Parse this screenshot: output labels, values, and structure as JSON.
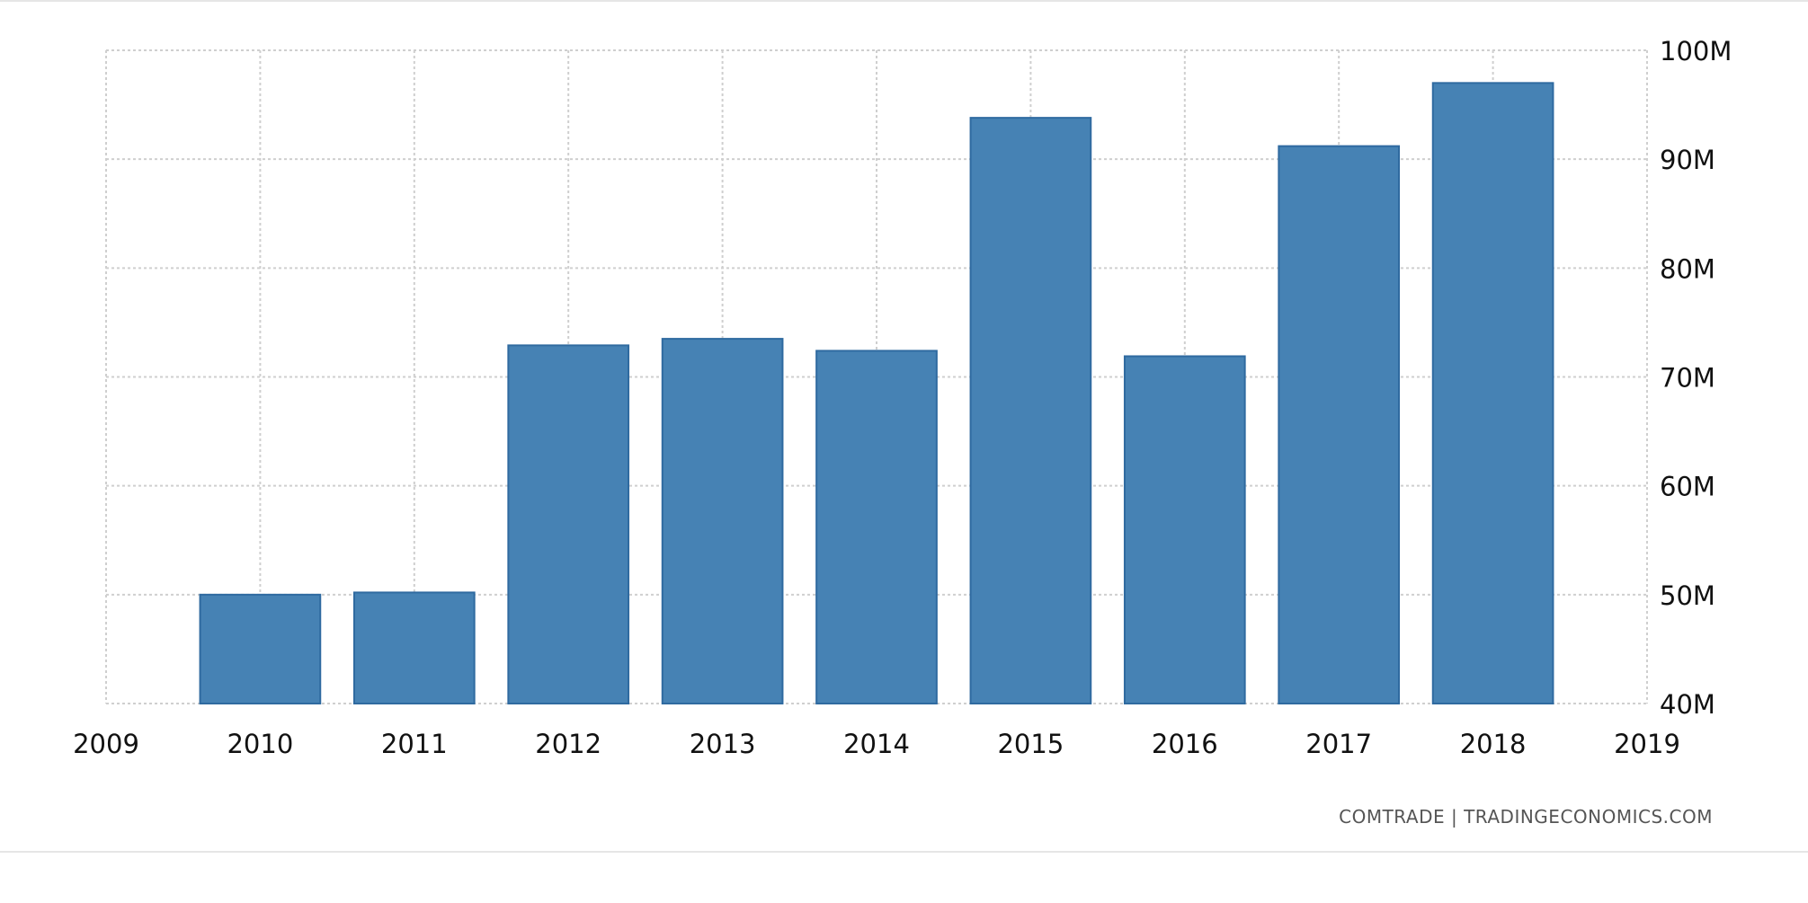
{
  "chart_data": {
    "type": "bar",
    "categories": [
      "2010",
      "2011",
      "2012",
      "2013",
      "2014",
      "2015",
      "2016",
      "2017",
      "2018"
    ],
    "values": [
      50,
      50.2,
      72.9,
      73.5,
      72.4,
      93.8,
      71.9,
      91.2,
      97.0
    ],
    "unit": "M",
    "x_ticks": [
      "2009",
      "2010",
      "2011",
      "2012",
      "2013",
      "2014",
      "2015",
      "2016",
      "2017",
      "2018",
      "2019"
    ],
    "y_ticks": [
      "40M",
      "50M",
      "60M",
      "70M",
      "80M",
      "90M",
      "100M"
    ],
    "xlim": [
      2009,
      2019
    ],
    "ylim": [
      40,
      100
    ],
    "y_axis_side": "right",
    "grid": true,
    "title": "",
    "xlabel": "",
    "ylabel": "",
    "bar_color": "#4682b4"
  },
  "source": {
    "text": "COMTRADE | TRADINGECONOMICS.COM"
  }
}
